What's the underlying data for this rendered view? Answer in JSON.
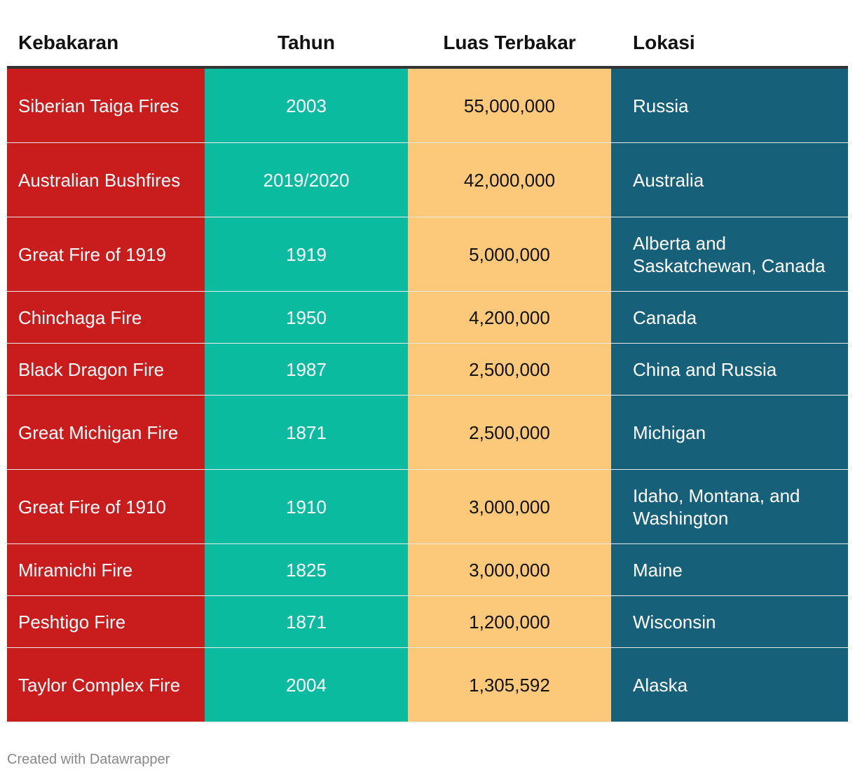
{
  "colors": {
    "col_fire": "#c91c1c",
    "col_year": "#0bbb9f",
    "col_area": "#fcc97a",
    "col_location": "#176079"
  },
  "chart_data": {
    "type": "table",
    "columns": [
      "Kebakaran",
      "Tahun",
      "Luas Terbakar",
      "Lokasi"
    ],
    "rows": [
      {
        "fire": "Siberian Taiga Fires",
        "year": "2003",
        "area": "55,000,000",
        "location": "Russia"
      },
      {
        "fire": "Australian Bushfires",
        "year": "2019/2020",
        "area": "42,000,000",
        "location": "Australia"
      },
      {
        "fire": "Great Fire of 1919",
        "year": "1919",
        "area": "5,000,000",
        "location": "Alberta and Saskatchewan, Canada"
      },
      {
        "fire": "Chinchaga Fire",
        "year": "1950",
        "area": "4,200,000",
        "location": "Canada"
      },
      {
        "fire": "Black Dragon Fire",
        "year": "1987",
        "area": "2,500,000",
        "location": "China and Russia"
      },
      {
        "fire": "Great Michigan Fire",
        "year": "1871",
        "area": "2,500,000",
        "location": "Michigan"
      },
      {
        "fire": "Great Fire of 1910",
        "year": "1910",
        "area": "3,000,000",
        "location": "Idaho, Montana, and Washington"
      },
      {
        "fire": "Miramichi Fire",
        "year": "1825",
        "area": "3,000,000",
        "location": "Maine"
      },
      {
        "fire": "Peshtigo Fire",
        "year": "1871",
        "area": "1,200,000",
        "location": "Wisconsin"
      },
      {
        "fire": "Taylor Complex Fire",
        "year": "2004",
        "area": "1,305,592",
        "location": "Alaska"
      }
    ]
  },
  "footer": "Created with Datawrapper"
}
